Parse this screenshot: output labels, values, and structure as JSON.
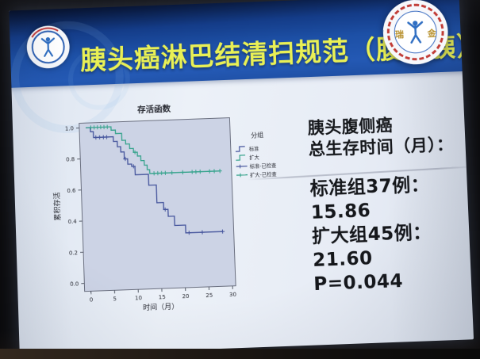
{
  "banner": {
    "title": "胰头癌淋巴结清扫规范（腹侧胰）"
  },
  "icons": {
    "left_logo": "ruijin-hospital-emblem",
    "right_logo": "ruijin-hospital-emblem",
    "right_logo_chars": {
      "left": "瑞",
      "right": "金"
    }
  },
  "stats_panel": {
    "lines": [
      "胰头腹侧癌",
      "总生存时间（月）：",
      "标准组37例：",
      "15.86",
      "扩大组45例：",
      "21.60",
      "P=0.044"
    ]
  },
  "colors": {
    "banner_blue": "#1d4da1",
    "title_yellow": "#e9f055",
    "standard_blue": "#44549c",
    "expanded_teal": "#35a38c",
    "plot_bg": "#ccd3e5",
    "slide_bg": "#e7ecf5"
  },
  "chart_data": {
    "type": "line",
    "km_style": "step",
    "title": "存活函数",
    "xlabel": "时间（月）",
    "ylabel": "累积存活",
    "legend_title": "分组",
    "legend_position": "right",
    "grid": false,
    "xlim": [
      0,
      31
    ],
    "ylim": [
      0.0,
      1.05
    ],
    "x_ticks": [
      0,
      5,
      10,
      15,
      20,
      25,
      30
    ],
    "y_ticks": [
      0.0,
      0.2,
      0.4,
      0.6,
      0.8,
      1.0
    ],
    "series": [
      {
        "name": "标准",
        "kind": "step",
        "color": "#44549c",
        "points": [
          [
            0,
            1.0
          ],
          [
            1.0,
            0.973
          ],
          [
            1.6,
            0.935
          ],
          [
            5.8,
            0.905
          ],
          [
            6.6,
            0.87
          ],
          [
            7.3,
            0.835
          ],
          [
            8.0,
            0.79
          ],
          [
            8.7,
            0.755
          ],
          [
            9.5,
            0.74
          ],
          [
            10.2,
            0.685
          ],
          [
            13.0,
            0.615
          ],
          [
            14.6,
            0.5
          ],
          [
            16.0,
            0.455
          ],
          [
            16.9,
            0.41
          ],
          [
            18.2,
            0.35
          ],
          [
            20.5,
            0.3
          ],
          [
            28.3,
            0.3
          ]
        ]
      },
      {
        "name": "扩大",
        "kind": "step",
        "color": "#35a38c",
        "points": [
          [
            0,
            1.0
          ],
          [
            5.4,
            0.978
          ],
          [
            6.3,
            0.955
          ],
          [
            7.6,
            0.91
          ],
          [
            8.4,
            0.885
          ],
          [
            9.2,
            0.855
          ],
          [
            10.0,
            0.83
          ],
          [
            10.8,
            0.805
          ],
          [
            11.5,
            0.775
          ],
          [
            12.2,
            0.745
          ],
          [
            12.8,
            0.715
          ],
          [
            13.3,
            0.69
          ],
          [
            28.3,
            0.69
          ]
        ]
      },
      {
        "name": "标准-已检查",
        "kind": "censor",
        "color": "#44549c",
        "points": [
          [
            2.1,
            0.935
          ],
          [
            2.9,
            0.935
          ],
          [
            3.7,
            0.935
          ],
          [
            4.4,
            0.935
          ],
          [
            8.2,
            0.79
          ],
          [
            9.9,
            0.74
          ],
          [
            16.3,
            0.455
          ],
          [
            21.2,
            0.3
          ],
          [
            24.0,
            0.3
          ],
          [
            28.3,
            0.3
          ]
        ]
      },
      {
        "name": "扩大-已检查",
        "kind": "censor",
        "color": "#35a38c",
        "points": [
          [
            1.1,
            1.0
          ],
          [
            1.8,
            1.0
          ],
          [
            2.5,
            1.0
          ],
          [
            3.2,
            1.0
          ],
          [
            3.9,
            1.0
          ],
          [
            4.6,
            1.0
          ],
          [
            10.3,
            0.83
          ],
          [
            14.2,
            0.69
          ],
          [
            15.0,
            0.69
          ],
          [
            15.8,
            0.69
          ],
          [
            16.6,
            0.69
          ],
          [
            18.0,
            0.69
          ],
          [
            20.3,
            0.69
          ],
          [
            22.3,
            0.69
          ],
          [
            23.1,
            0.69
          ],
          [
            24.0,
            0.69
          ],
          [
            26.0,
            0.69
          ],
          [
            27.0,
            0.69
          ],
          [
            28.2,
            0.69
          ]
        ]
      }
    ]
  }
}
